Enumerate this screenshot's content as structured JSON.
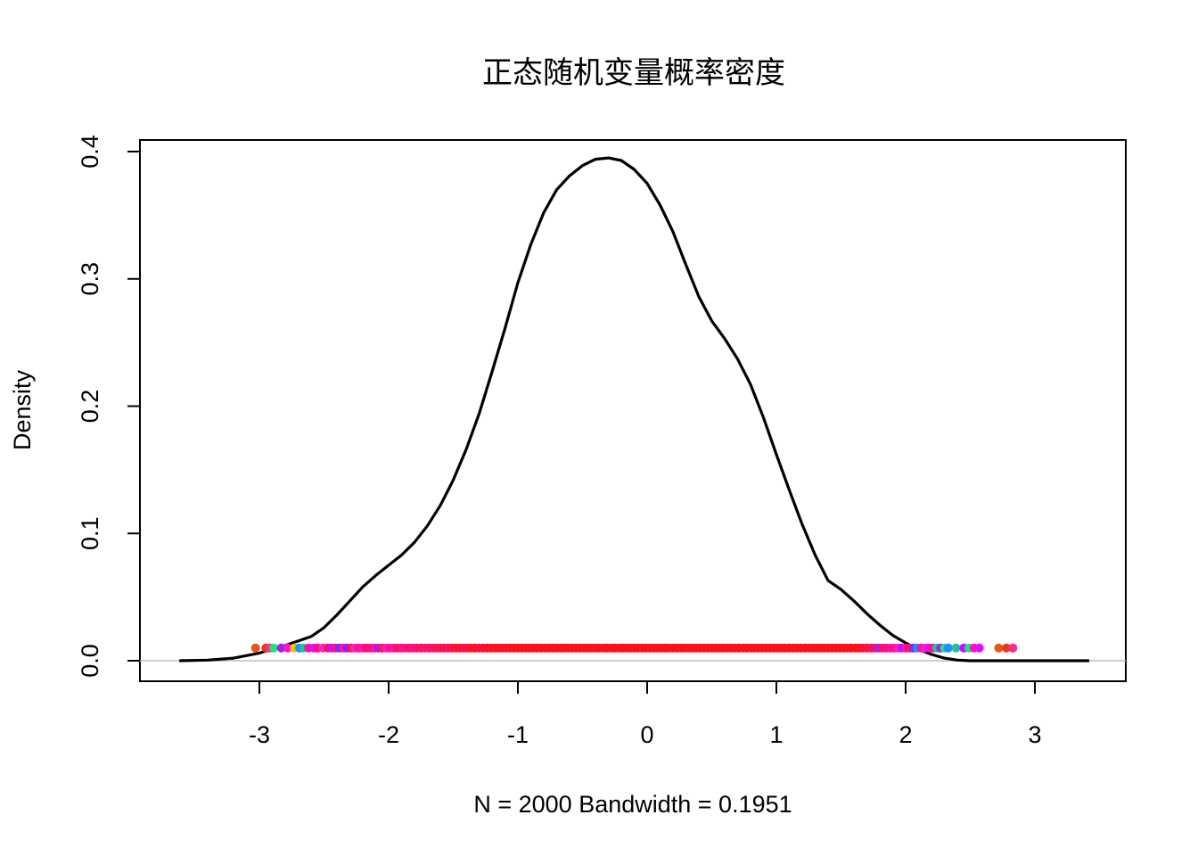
{
  "chart_data": {
    "type": "area",
    "title": "正态随机变量概率密度",
    "xlabel": "N = 2000   Bandwidth = 0.1951",
    "ylabel": "Density",
    "xlim": [
      -3.8,
      3.8
    ],
    "ylim": [
      -0.016,
      0.41
    ],
    "x_ticks": [
      -3,
      -2,
      -1,
      0,
      1,
      2,
      3
    ],
    "y_ticks": [
      0.0,
      0.1,
      0.2,
      0.3,
      0.4
    ],
    "x_tick_labels": [
      "-3",
      "-2",
      "-1",
      "0",
      "1",
      "2",
      "3"
    ],
    "y_tick_labels": [
      "0.0",
      "0.1",
      "0.2",
      "0.3",
      "0.4"
    ],
    "grid": false,
    "series": [
      {
        "x": [
          -3.62,
          -3.4,
          -3.2,
          -3.0,
          -2.8,
          -2.6,
          -2.5,
          -2.4,
          -2.3,
          -2.2,
          -2.1,
          -2.0,
          -1.9,
          -1.8,
          -1.7,
          -1.6,
          -1.5,
          -1.4,
          -1.3,
          -1.2,
          -1.1,
          -1.0,
          -0.9,
          -0.8,
          -0.7,
          -0.6,
          -0.5,
          -0.4,
          -0.3,
          -0.2,
          -0.1,
          0.0,
          0.1,
          0.2,
          0.3,
          0.4,
          0.5,
          0.6,
          0.7,
          0.8,
          0.9,
          1.0,
          1.1,
          1.2,
          1.3,
          1.4,
          1.5,
          1.6,
          1.7,
          1.8,
          1.9,
          2.0,
          2.1,
          2.2,
          2.3,
          2.4,
          2.5,
          2.6,
          2.7,
          2.8,
          3.0,
          3.2,
          3.42
        ],
        "y": [
          0.0,
          0.0005,
          0.002,
          0.006,
          0.012,
          0.019,
          0.026,
          0.036,
          0.047,
          0.058,
          0.067,
          0.075,
          0.083,
          0.093,
          0.106,
          0.122,
          0.142,
          0.166,
          0.194,
          0.227,
          0.261,
          0.297,
          0.327,
          0.352,
          0.37,
          0.381,
          0.389,
          0.394,
          0.395,
          0.393,
          0.386,
          0.375,
          0.358,
          0.337,
          0.311,
          0.286,
          0.267,
          0.253,
          0.237,
          0.217,
          0.191,
          0.162,
          0.134,
          0.107,
          0.083,
          0.063,
          0.056,
          0.047,
          0.037,
          0.028,
          0.02,
          0.014,
          0.009,
          0.005,
          0.002,
          0.0005,
          0.0,
          0.0,
          0.0,
          0.0,
          0.0,
          0.0,
          0.0
        ]
      }
    ],
    "rug": {
      "y": 0.01,
      "x": [
        -3.03,
        -2.95,
        -2.92,
        -2.89,
        -2.83,
        -2.78,
        -2.73,
        -2.69,
        -2.66,
        -2.62,
        -2.58,
        -2.55,
        -2.51,
        -2.47,
        -2.44,
        -2.41,
        -2.38,
        -2.35,
        -2.32,
        -2.29,
        -2.26,
        -2.23,
        -2.2,
        -2.17,
        -2.14,
        -2.11,
        -2.08,
        -2.05,
        -2.02,
        -1.99,
        -1.96,
        -1.93,
        -1.9,
        -1.87,
        -1.84,
        -1.81,
        -1.78,
        -1.75,
        -1.72,
        -1.69,
        -1.66,
        -1.63,
        -1.6,
        -1.57,
        -1.54,
        -1.51,
        -1.48,
        -1.45,
        -1.42,
        -1.39,
        -1.36,
        -1.33,
        -1.3,
        -1.27,
        -1.24,
        -1.21,
        -1.18,
        -1.15,
        -1.12,
        -1.09,
        -1.06,
        -1.03,
        -1.0,
        -0.97,
        -0.94,
        -0.91,
        -0.88,
        -0.85,
        -0.82,
        -0.79,
        -0.76,
        -0.73,
        -0.7,
        -0.67,
        -0.64,
        -0.61,
        -0.58,
        -0.55,
        -0.52,
        -0.49,
        -0.46,
        -0.43,
        -0.4,
        -0.37,
        -0.34,
        -0.31,
        -0.28,
        -0.25,
        -0.22,
        -0.19,
        -0.16,
        -0.13,
        -0.1,
        -0.07,
        -0.04,
        -0.01,
        0.02,
        0.05,
        0.08,
        0.11,
        0.14,
        0.17,
        0.2,
        0.23,
        0.26,
        0.29,
        0.32,
        0.35,
        0.38,
        0.41,
        0.44,
        0.47,
        0.5,
        0.53,
        0.56,
        0.59,
        0.62,
        0.65,
        0.68,
        0.71,
        0.74,
        0.77,
        0.8,
        0.83,
        0.86,
        0.89,
        0.92,
        0.95,
        0.98,
        1.01,
        1.04,
        1.07,
        1.1,
        1.13,
        1.16,
        1.19,
        1.22,
        1.25,
        1.28,
        1.31,
        1.34,
        1.37,
        1.4,
        1.43,
        1.46,
        1.49,
        1.52,
        1.55,
        1.58,
        1.61,
        1.64,
        1.67,
        1.7,
        1.73,
        1.76,
        1.79,
        1.82,
        1.85,
        1.88,
        1.91,
        1.94,
        1.97,
        2.0,
        2.03,
        2.06,
        2.09,
        2.12,
        2.15,
        2.18,
        2.21,
        2.24,
        2.27,
        2.3,
        2.33,
        2.39,
        2.45,
        2.49,
        2.53,
        2.57,
        2.72,
        2.78,
        2.83
      ],
      "colors": [
        "#e8531e",
        "#e8381a",
        "#ff2a8a",
        "#22e07a",
        "#a020f0",
        "#ff14c8",
        "#f2c200",
        "#1e90ff",
        "#20c0a0",
        "#ff10a0",
        "#e010ff",
        "#ff1080",
        "#ff20c0",
        "#ff1060",
        "#c010ff",
        "#ff1090",
        "#7b2cf0",
        "#ff10b0",
        "#8a20ff",
        "#ff1060",
        "#ff20c0",
        "#ff1090",
        "#ff10b0",
        "#ff1060",
        "#ff1080",
        "#ff10a0",
        "#a020f0",
        "#ff1060",
        "#ff20c0",
        "#ff1090",
        "#ff10b0",
        "#ff1060",
        "#ff1080",
        "#ff10a0",
        "#ff1060",
        "#ff1090",
        "#ff1070",
        "#ff1060",
        "#ff1080",
        "#ff1050",
        "#ff1070",
        "#ff1060",
        "#ff1050",
        "#ff1040",
        "#ff1060",
        "#ff1050",
        "#ff1040",
        "#ff1030",
        "#ff1050",
        "#ff1040",
        "#ff1030",
        "#ff1020",
        "#ff1040",
        "#ff1030",
        "#ff1020",
        "#ff1030",
        "#ff1020",
        "#ff1010",
        "#ff1020",
        "#ff1030",
        "#ff1020",
        "#ff1010",
        "#ff1020",
        "#ff1010",
        "#ff1020",
        "#ff1010",
        "#ff1020",
        "#ff1010",
        "#ff1020",
        "#ff1010",
        "#ff1020",
        "#ff1010",
        "#ff1020",
        "#ff1010",
        "#ff1020",
        "#ff1010",
        "#ff1020",
        "#ff1010",
        "#ff1020",
        "#ff1010",
        "#ff1020",
        "#ff1010",
        "#ff1020",
        "#ff1010",
        "#ff1020",
        "#ff1010",
        "#ff1020",
        "#ff1010",
        "#ff1020",
        "#ff1010",
        "#ff1020",
        "#ff1010",
        "#ff1020",
        "#ff1010",
        "#ff1020",
        "#ff1010",
        "#ff1020",
        "#ff1010",
        "#ff1020",
        "#ff1010",
        "#ff1020",
        "#ff1010",
        "#ff1020",
        "#ff1010",
        "#ff1020",
        "#ff1010",
        "#ff1020",
        "#ff1010",
        "#ff1020",
        "#ff1010",
        "#ff1020",
        "#ff1010",
        "#ff1020",
        "#ff1010",
        "#ff1020",
        "#ff1010",
        "#ff1020",
        "#ff1010",
        "#ff1020",
        "#ff1010",
        "#ff1020",
        "#ff1010",
        "#ff1020",
        "#ff1010",
        "#ff1020",
        "#ff1010",
        "#ff1020",
        "#ff1010",
        "#ff1020",
        "#ff1010",
        "#ff1020",
        "#ff1010",
        "#ff1020",
        "#ff1010",
        "#ff1020",
        "#ff1010",
        "#ff1020",
        "#ff1010",
        "#ff1020",
        "#ff1010",
        "#ff1020",
        "#ff1010",
        "#ff1020",
        "#ff1010",
        "#ff1020",
        "#ff1010",
        "#ff1020",
        "#ff1010",
        "#ff1020",
        "#ff1010",
        "#ff1020",
        "#ff1030",
        "#ff1040",
        "#ff1050",
        "#ff1060",
        "#a020f0",
        "#ff1070",
        "#ff1080",
        "#ff10a0",
        "#ff1090",
        "#ff20c0",
        "#c010ff",
        "#ff10b0",
        "#ff1060",
        "#7b2cf0",
        "#1e90ff",
        "#ff10a0",
        "#ff20c0",
        "#e010ff",
        "#ff1080",
        "#20c0a0",
        "#a020f0",
        "#22e07a",
        "#1e90ff",
        "#20c0a0",
        "#c010ff",
        "#22e07a",
        "#ff10c0",
        "#e010ff"
      ]
    },
    "zero_line": true
  }
}
